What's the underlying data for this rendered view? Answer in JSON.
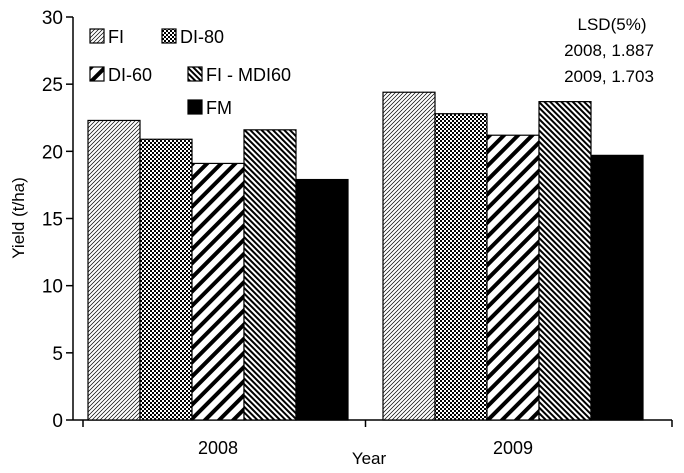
{
  "chart_data": {
    "type": "bar",
    "xlabel": "Year",
    "ylabel": "Yield (t/ha)",
    "categories": [
      "2008",
      "2009"
    ],
    "ylim": [
      0,
      30
    ],
    "yticks": [
      0,
      5,
      10,
      15,
      20,
      25,
      30
    ],
    "grid": false,
    "legend_position": "top-left",
    "series": [
      {
        "name": "FI",
        "values": [
          22.3,
          24.4
        ],
        "pattern": "fine-diagonal"
      },
      {
        "name": "DI-80",
        "values": [
          20.9,
          22.8
        ],
        "pattern": "checker"
      },
      {
        "name": "DI-60",
        "values": [
          19.1,
          21.2
        ],
        "pattern": "wide-diagonal"
      },
      {
        "name": "FI - MDI60",
        "values": [
          21.6,
          23.7
        ],
        "pattern": "dense-diagonal"
      },
      {
        "name": "FM",
        "values": [
          17.9,
          19.7
        ],
        "pattern": "solid-black"
      }
    ],
    "annotation": {
      "title": "LSD(5%)",
      "lines": [
        "2008, 1.887",
        "2009, 1.703"
      ]
    }
  }
}
